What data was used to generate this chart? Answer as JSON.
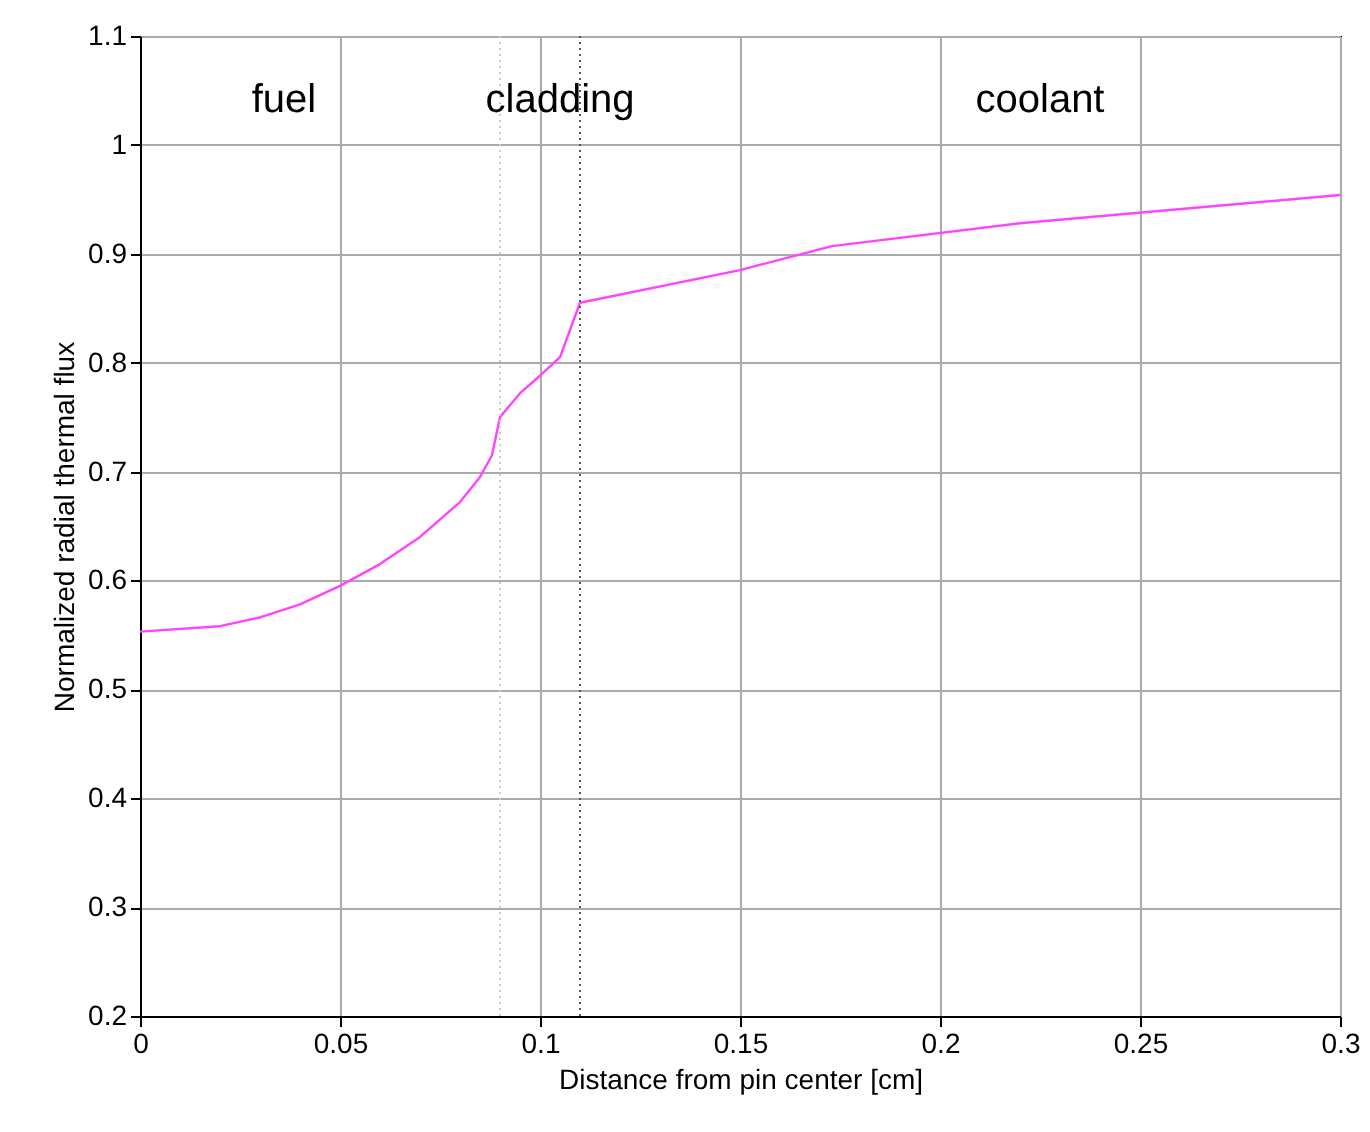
{
  "chart_data": {
    "type": "line",
    "xlabel": "Distance from pin center [cm]",
    "ylabel": "Normalized radial thermal flux",
    "x": [
      0,
      0.02,
      0.03,
      0.04,
      0.05,
      0.06,
      0.07,
      0.08,
      0.085,
      0.088,
      0.09,
      0.095,
      0.1,
      0.105,
      0.11,
      0.15,
      0.173,
      0.22,
      0.3
    ],
    "series": [
      {
        "color": "#ff44ff",
        "values": [
          0.553,
          0.558,
          0.566,
          0.578,
          0.595,
          0.615,
          0.64,
          0.672,
          0.695,
          0.715,
          0.75,
          0.772,
          0.788,
          0.805,
          0.855,
          0.885,
          0.907,
          0.928,
          0.954
        ]
      }
    ],
    "xlim": [
      0,
      0.3
    ],
    "xticks": [
      0,
      0.05,
      0.1,
      0.15,
      0.2,
      0.25,
      0.3
    ],
    "ylim": [
      0.2,
      1.1
    ],
    "yticks": [
      0.2,
      0.3,
      0.4,
      0.5,
      0.6,
      0.7,
      0.8,
      0.9,
      1,
      1.1
    ],
    "grid": true,
    "line_style": "solid",
    "marker": "none",
    "ref_lines": [
      {
        "axis": "x",
        "value": 0.09,
        "color": "#cccccc",
        "line_style": "dotted"
      },
      {
        "axis": "x",
        "value": 0.11,
        "color": "#555555",
        "line_style": "dotted"
      }
    ],
    "annotations": [
      "fuel",
      "cladding",
      "coolant"
    ]
  }
}
